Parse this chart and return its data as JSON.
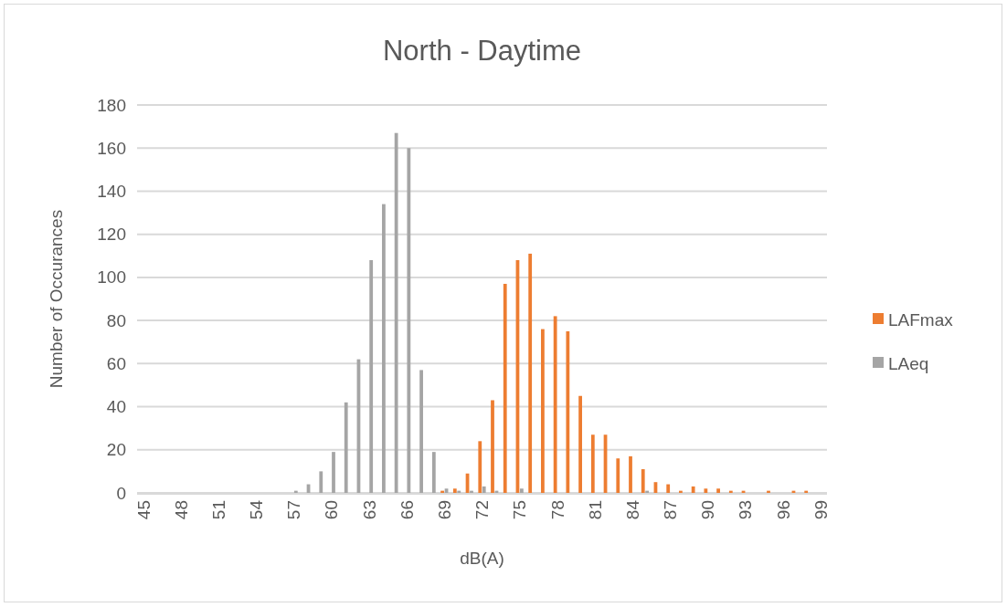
{
  "chart_data": {
    "type": "bar",
    "title": "North - Daytime",
    "xlabel": "dB(A)",
    "ylabel": "Number of Occurances",
    "categories": [
      "45",
      null,
      null,
      "48",
      null,
      null,
      "51",
      null,
      null,
      "54",
      null,
      null,
      "57",
      null,
      null,
      "60",
      null,
      null,
      "63",
      null,
      null,
      "66",
      null,
      null,
      "69",
      null,
      null,
      "72",
      null,
      null,
      "75",
      null,
      null,
      "78",
      null,
      null,
      "81",
      null,
      null,
      "84",
      null,
      null,
      "87",
      null,
      null,
      "90",
      null,
      null,
      "93",
      null,
      null,
      "96",
      null,
      null,
      "99"
    ],
    "series": [
      {
        "name": "LAFmax",
        "color": "#ed7d31",
        "values": [
          0,
          0,
          0,
          0,
          0,
          0,
          0,
          0,
          0,
          0,
          0,
          0,
          0,
          0,
          0,
          0,
          0,
          0,
          0,
          0,
          0,
          0,
          0,
          0,
          1,
          2,
          9,
          24,
          43,
          97,
          108,
          111,
          76,
          82,
          75,
          45,
          27,
          27,
          16,
          17,
          11,
          5,
          4,
          1,
          3,
          2,
          2,
          1,
          1,
          0,
          1,
          0,
          1,
          1,
          0
        ]
      },
      {
        "name": "LAeq",
        "color": "#a5a5a5",
        "values": [
          0,
          0,
          0,
          0,
          0,
          0,
          0,
          0,
          0,
          0,
          0,
          0,
          1,
          4,
          10,
          19,
          42,
          62,
          108,
          134,
          167,
          160,
          57,
          19,
          2,
          1,
          1,
          3,
          1,
          0,
          2,
          0,
          0,
          0,
          0,
          0,
          0,
          0,
          0,
          0,
          1,
          0,
          0,
          0,
          0,
          0,
          0,
          0,
          0,
          0,
          0,
          0,
          0,
          0,
          0
        ]
      }
    ],
    "ylim": [
      0,
      180
    ],
    "yticks": [
      0,
      20,
      40,
      60,
      80,
      100,
      120,
      140,
      160,
      180
    ],
    "grid": "y",
    "legend": "right"
  }
}
